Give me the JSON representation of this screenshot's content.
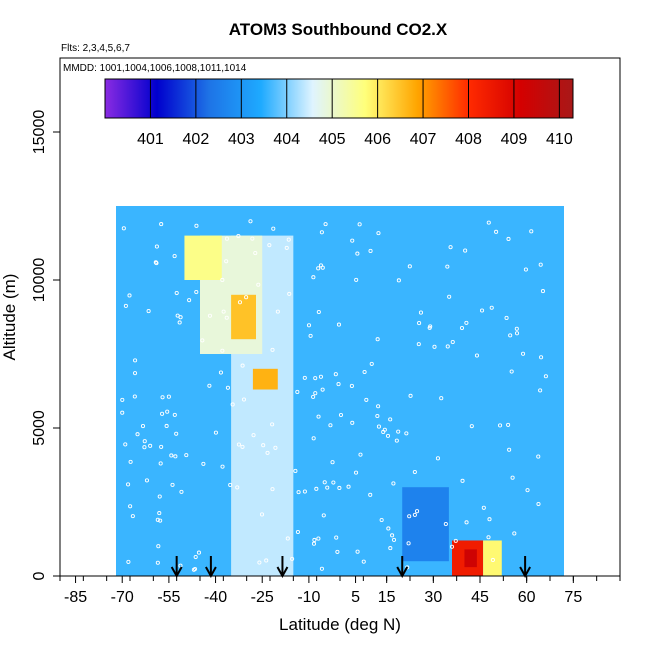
{
  "chart_data": {
    "type": "heatmap",
    "title": "ATOM3 Southbound CO2.X",
    "flights_label": "Flts: 2,3,4,5,6,7",
    "mmdd_label": "MMDD: 1001,1004,1006,1008,1011,1014",
    "xlabel": "Latitude (deg N)",
    "ylabel": "Altitude (m)",
    "xlim": [
      -90,
      90
    ],
    "ylim": [
      0,
      17500
    ],
    "x_ticks": [
      "-85",
      "-70",
      "-55",
      "-40",
      "-25",
      "-10",
      "5",
      "15",
      "30",
      "45",
      "60",
      "75"
    ],
    "x_tick_values": [
      -85,
      -70,
      -55,
      -40,
      -25,
      -10,
      5,
      15,
      30,
      45,
      60,
      75
    ],
    "y_ticks": [
      "0",
      "5000",
      "10000",
      "15000"
    ],
    "y_tick_values": [
      0,
      5000,
      10000,
      15000
    ],
    "colorbar": {
      "range": [
        400,
        410.3
      ],
      "tick_labels": [
        "401",
        "402",
        "403",
        "404",
        "405",
        "406",
        "407",
        "408",
        "409",
        "410"
      ],
      "tick_values": [
        401,
        402,
        403,
        404,
        405,
        406,
        407,
        408,
        409,
        410
      ],
      "colors": [
        "#8a2be2",
        "#0000cd",
        "#1e73e6",
        "#1eaaff",
        "#dff4ff",
        "#ffff7a",
        "#ffa500",
        "#ff2a00",
        "#d40000",
        "#a81818"
      ]
    },
    "sampling_arrows_lat": [
      -52.5,
      -41.5,
      -18.5,
      20,
      59.5
    ],
    "field_regions": [
      {
        "lat": [
          -72,
          72
        ],
        "alt": [
          0,
          12500
        ],
        "co2": 403.6
      },
      {
        "lat": [
          -35,
          -15
        ],
        "alt": [
          0,
          11500
        ],
        "co2": 404.4
      },
      {
        "lat": [
          -45,
          -25
        ],
        "alt": [
          7500,
          11500
        ],
        "co2": 404.9
      },
      {
        "lat": [
          -50,
          -38
        ],
        "alt": [
          10000,
          11500
        ],
        "co2": 405.6
      },
      {
        "lat": [
          -35,
          -27
        ],
        "alt": [
          8000,
          9500
        ],
        "co2": 406.5
      },
      {
        "lat": [
          -28,
          -20
        ],
        "alt": [
          6300,
          7000
        ],
        "co2": 406.7
      },
      {
        "lat": [
          20,
          35
        ],
        "alt": [
          500,
          3000
        ],
        "co2": 402.6
      },
      {
        "lat": [
          36,
          46
        ],
        "alt": [
          0,
          1200
        ],
        "co2": 408.4
      },
      {
        "lat": [
          46,
          52
        ],
        "alt": [
          0,
          1200
        ],
        "co2": 405.8
      },
      {
        "lat": [
          40,
          44
        ],
        "alt": [
          300,
          900
        ],
        "co2": 409.3
      }
    ]
  }
}
